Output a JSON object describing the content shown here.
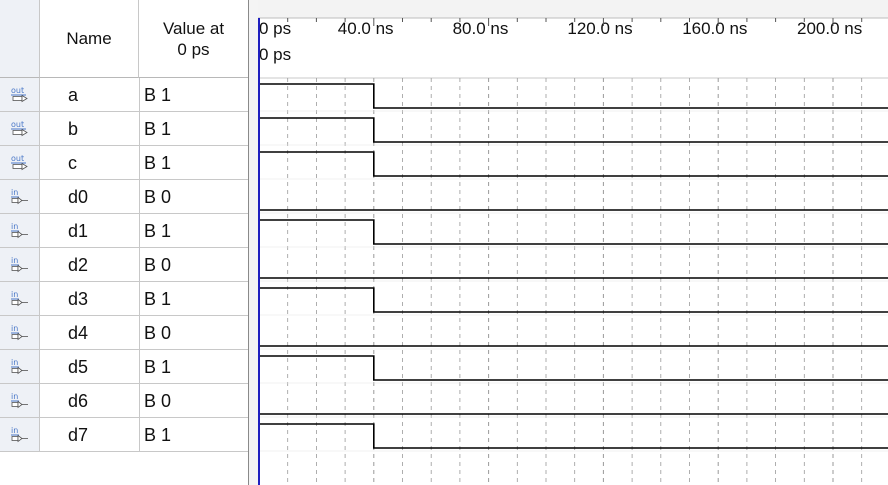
{
  "table": {
    "header_name": "Name",
    "header_value": "Value at\n0 ps",
    "signals": [
      {
        "dir": "out",
        "name": "a",
        "value": "B 1"
      },
      {
        "dir": "out",
        "name": "b",
        "value": "B 1"
      },
      {
        "dir": "out",
        "name": "c",
        "value": "B 1"
      },
      {
        "dir": "in",
        "name": "d0",
        "value": "B 0"
      },
      {
        "dir": "in",
        "name": "d1",
        "value": "B 1"
      },
      {
        "dir": "in",
        "name": "d2",
        "value": "B 0"
      },
      {
        "dir": "in",
        "name": "d3",
        "value": "B 1"
      },
      {
        "dir": "in",
        "name": "d4",
        "value": "B 0"
      },
      {
        "dir": "in",
        "name": "d5",
        "value": "B 1"
      },
      {
        "dir": "in",
        "name": "d6",
        "value": "B 0"
      },
      {
        "dir": "in",
        "name": "d7",
        "value": "B 1"
      }
    ]
  },
  "timeline": {
    "tick_labels": [
      "0 ps",
      "40.0 ns",
      "80.0 ns",
      "120.0 ns",
      "160.0 ns",
      "200.0 ns"
    ],
    "cursor_label": "0 ps"
  },
  "waves": [
    {
      "name": "a",
      "transitions": [
        [
          0,
          1
        ],
        [
          40,
          0
        ]
      ]
    },
    {
      "name": "b",
      "transitions": [
        [
          0,
          1
        ],
        [
          40,
          0
        ]
      ]
    },
    {
      "name": "c",
      "transitions": [
        [
          0,
          1
        ],
        [
          40,
          0
        ]
      ]
    },
    {
      "name": "d0",
      "transitions": [
        [
          0,
          0
        ]
      ]
    },
    {
      "name": "d1",
      "transitions": [
        [
          0,
          1
        ],
        [
          40,
          0
        ]
      ]
    },
    {
      "name": "d2",
      "transitions": [
        [
          0,
          0
        ]
      ]
    },
    {
      "name": "d3",
      "transitions": [
        [
          0,
          1
        ],
        [
          40,
          0
        ]
      ]
    },
    {
      "name": "d4",
      "transitions": [
        [
          0,
          0
        ]
      ]
    },
    {
      "name": "d5",
      "transitions": [
        [
          0,
          1
        ],
        [
          40,
          0
        ]
      ]
    },
    {
      "name": "d6",
      "transitions": [
        [
          0,
          0
        ]
      ]
    },
    {
      "name": "d7",
      "transitions": [
        [
          0,
          1
        ],
        [
          40,
          0
        ]
      ]
    }
  ],
  "colors": {
    "wave": "#000000",
    "cursor": "#1f1fbf",
    "grid": "#9a9a9a",
    "icon_in": "#4a78c8",
    "icon_out": "#4a78c8"
  },
  "icons": {
    "in": "input-pin-icon",
    "out": "output-pin-icon"
  }
}
